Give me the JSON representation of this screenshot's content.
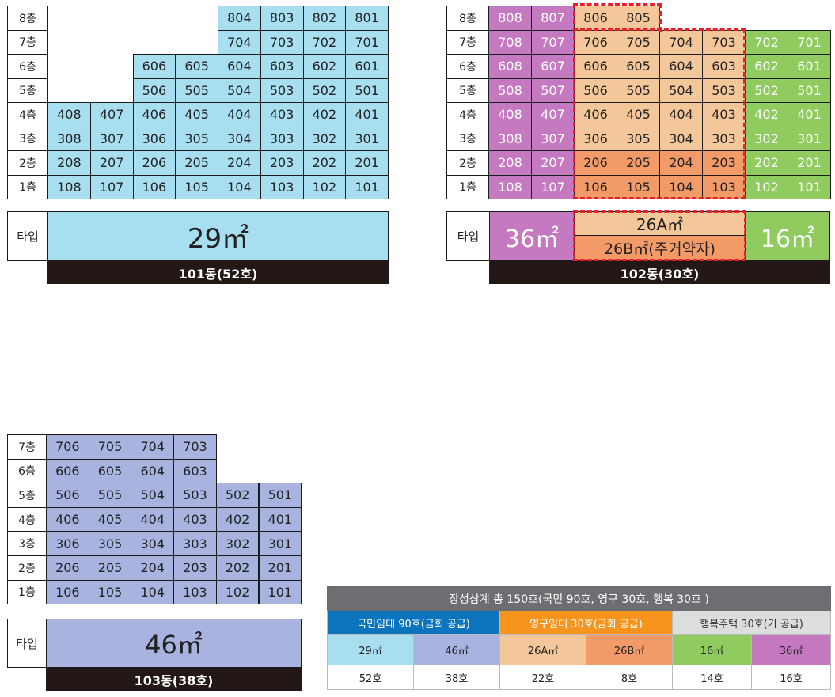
{
  "b101": {
    "floors": [
      "8층",
      "7층",
      "6층",
      "5층",
      "4층",
      "3층",
      "2층",
      "1층"
    ],
    "rows": [
      [
        "",
        "",
        "",
        "",
        "804",
        "803",
        "802",
        "801"
      ],
      [
        "",
        "",
        "",
        "",
        "704",
        "703",
        "702",
        "701"
      ],
      [
        "",
        "",
        "606",
        "605",
        "604",
        "603",
        "602",
        "601"
      ],
      [
        "",
        "",
        "506",
        "505",
        "504",
        "503",
        "502",
        "501"
      ],
      [
        "408",
        "407",
        "406",
        "405",
        "404",
        "403",
        "402",
        "401"
      ],
      [
        "308",
        "307",
        "306",
        "305",
        "304",
        "303",
        "302",
        "301"
      ],
      [
        "208",
        "207",
        "206",
        "205",
        "204",
        "203",
        "202",
        "201"
      ],
      [
        "108",
        "107",
        "106",
        "105",
        "104",
        "103",
        "102",
        "101"
      ]
    ],
    "type_label": "타입",
    "area": "29㎡",
    "footer": "101동(52호)"
  },
  "b102": {
    "floors": [
      "8층",
      "7층",
      "6층",
      "5층",
      "4층",
      "3층",
      "2층",
      "1층"
    ],
    "rows": [
      [
        "808",
        "807",
        "806",
        "805",
        "",
        "",
        "",
        ""
      ],
      [
        "708",
        "707",
        "706",
        "705",
        "704",
        "703",
        "702",
        "701"
      ],
      [
        "608",
        "607",
        "606",
        "605",
        "604",
        "603",
        "602",
        "601"
      ],
      [
        "508",
        "507",
        "506",
        "505",
        "504",
        "503",
        "502",
        "501"
      ],
      [
        "408",
        "407",
        "406",
        "405",
        "404",
        "403",
        "402",
        "401"
      ],
      [
        "308",
        "307",
        "306",
        "305",
        "304",
        "303",
        "302",
        "301"
      ],
      [
        "208",
        "207",
        "206",
        "205",
        "204",
        "203",
        "202",
        "201"
      ],
      [
        "108",
        "107",
        "106",
        "105",
        "104",
        "103",
        "102",
        "101"
      ]
    ],
    "type_label": "타입",
    "area_left": "36㎡",
    "area_mid_top": "26A㎡",
    "area_mid_bottom": "26B㎡(주거약자)",
    "area_right": "16㎡",
    "footer": "102동(30호)"
  },
  "b103": {
    "floors": [
      "7층",
      "6층",
      "5층",
      "4층",
      "3층",
      "2층",
      "1층"
    ],
    "rows": [
      [
        "706",
        "705",
        "704",
        "703",
        "",
        ""
      ],
      [
        "606",
        "605",
        "604",
        "603",
        "",
        ""
      ],
      [
        "506",
        "505",
        "504",
        "503",
        "502",
        "501"
      ],
      [
        "406",
        "405",
        "404",
        "403",
        "402",
        "401"
      ],
      [
        "306",
        "305",
        "304",
        "303",
        "302",
        "301"
      ],
      [
        "206",
        "205",
        "204",
        "203",
        "202",
        "201"
      ],
      [
        "106",
        "105",
        "104",
        "103",
        "102",
        "101"
      ]
    ],
    "type_label": "타입",
    "area": "46㎡",
    "footer": "103동(38호)"
  },
  "summary": {
    "title": "장성삼계  총 150호(국민 90호, 영구 30호, 행복 30호 )",
    "groups": [
      "국민임대 90호(금회 공급)",
      "영구임대 30호(금회 공급)",
      "행복주택 30호(기 공급)"
    ],
    "types": [
      "29㎡",
      "46㎡",
      "26A㎡",
      "26B㎡",
      "16㎡",
      "36㎡"
    ],
    "counts": [
      "52호",
      "38호",
      "22호",
      "8호",
      "14호",
      "16호"
    ]
  },
  "colors": {
    "blue": "#a8dff0",
    "lavender": "#a9b3df",
    "magenta": "#c579c0",
    "peach": "#f4c79a",
    "orange": "#f39a69",
    "green": "#8fcb5e",
    "dark": "#231815",
    "red_dash": "#e4202a"
  }
}
